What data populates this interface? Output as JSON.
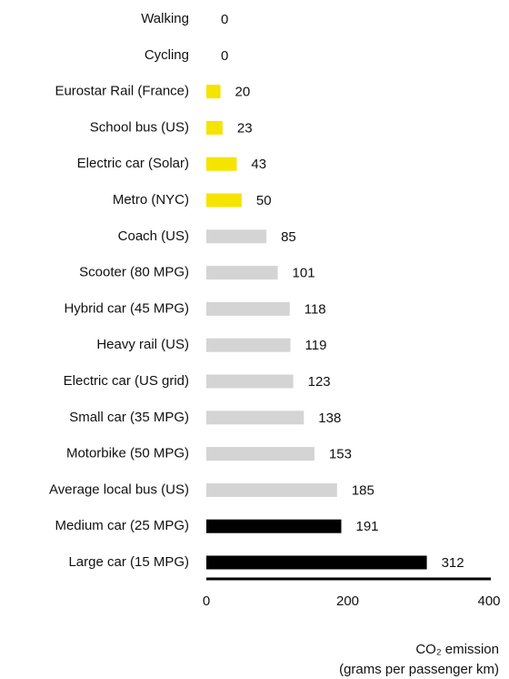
{
  "chart_data": {
    "type": "barh",
    "categories": [
      "Walking",
      "Cycling",
      "Eurostar Rail (France)",
      "School bus (US)",
      "Electric car (Solar)",
      "Metro (NYC)",
      "Coach (US)",
      "Scooter (80 MPG)",
      "Hybrid car (45 MPG)",
      "Heavy rail (US)",
      "Electric car (US grid)",
      "Small car (35 MPG)",
      "Motorbike (50 MPG)",
      "Average local bus (US)",
      "Medium car (25 MPG)",
      "Large car (15 MPG)"
    ],
    "values": [
      0,
      0,
      20,
      23,
      43,
      50,
      85,
      101,
      118,
      119,
      123,
      138,
      153,
      185,
      191,
      312
    ],
    "colors": [
      "#f5e400",
      "#f5e400",
      "#f5e400",
      "#f5e400",
      "#f5e400",
      "#f5e400",
      "#d4d4d4",
      "#d4d4d4",
      "#d4d4d4",
      "#d4d4d4",
      "#d4d4d4",
      "#d4d4d4",
      "#d4d4d4",
      "#d4d4d4",
      "#000000",
      "#000000"
    ],
    "xlim": [
      0,
      400
    ],
    "xticks": [
      0,
      200,
      400
    ],
    "xlabel": [
      "CO₂ emission",
      "(grams per passenger km)"
    ]
  }
}
